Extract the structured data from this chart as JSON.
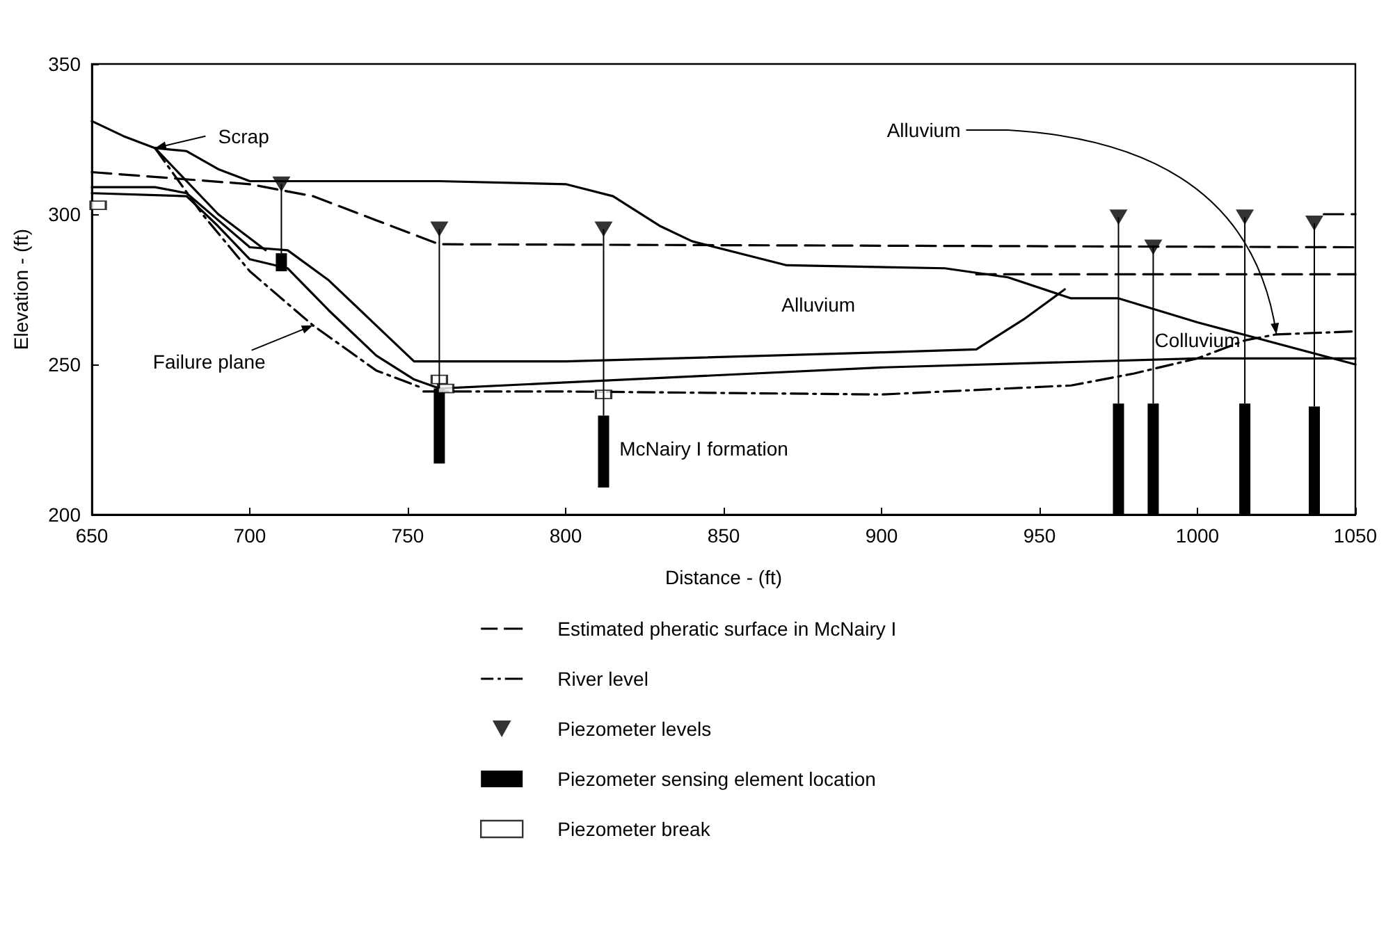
{
  "chart_data": {
    "type": "line",
    "xlabel": "Distance - (ft)",
    "ylabel": "Elevation - (ft)",
    "xlim": [
      650,
      1050
    ],
    "ylim": [
      200,
      350
    ],
    "xticks": [
      650,
      700,
      750,
      800,
      850,
      900,
      950,
      1000,
      1050
    ],
    "yticks": [
      200,
      250,
      300,
      350
    ],
    "grid": false,
    "legend": "bottom",
    "series": [
      {
        "color": "#000000",
        "line_style": "solid",
        "marker": "none",
        "x": [
          650,
          660,
          670,
          680,
          690,
          700,
          720,
          760,
          800,
          815,
          830,
          840,
          870,
          920,
          940,
          960,
          975,
          1000,
          1050
        ],
        "values": [
          331,
          326,
          322,
          321,
          315,
          311,
          311,
          311,
          310,
          306,
          296,
          291,
          283,
          282,
          279,
          272,
          272,
          264,
          250
        ]
      },
      {
        "color": "#000000",
        "line_style": "solid",
        "marker": "none",
        "x": [
          650,
          670,
          680,
          690,
          700,
          712,
          725,
          740,
          752,
          800,
          900,
          930,
          945,
          958
        ],
        "values": [
          309,
          309,
          307,
          298,
          289,
          288,
          278,
          263,
          251,
          251,
          254,
          255,
          265,
          275
        ]
      },
      {
        "color": "#000000",
        "line_style": "solid",
        "marker": "none",
        "x": [
          650,
          680,
          690,
          700,
          712,
          725,
          740,
          752,
          760,
          800,
          900,
          1000,
          1050
        ],
        "values": [
          307,
          306,
          296,
          285,
          282,
          268,
          253,
          245,
          242,
          244,
          249,
          252,
          252
        ]
      },
      {
        "color": "#000000",
        "line_style": "solid",
        "marker": "none",
        "x": [
          670,
          690,
          705
        ],
        "values": [
          322,
          300,
          288
        ]
      },
      {
        "color": "#000000",
        "line_style": "dashdot",
        "marker": "none",
        "x": [
          670,
          685,
          700,
          720,
          740,
          755
        ],
        "values": [
          322,
          300,
          281,
          263,
          248,
          242
        ]
      },
      {
        "name": "Estimated pheratic surface in McNairy I",
        "color": "#000000",
        "line_style": "dashed",
        "marker": "none",
        "x": [
          650,
          700,
          720,
          740,
          760,
          1050
        ],
        "values": [
          314,
          310,
          306,
          298,
          290,
          289
        ]
      },
      {
        "color": "#000000",
        "line_style": "dashed",
        "marker": "none",
        "x": [
          930,
          1050
        ],
        "values": [
          280,
          280
        ]
      },
      {
        "color": "#000000",
        "line_style": "dashed",
        "marker": "none",
        "x": [
          1040,
          1050
        ],
        "values": [
          300,
          300
        ]
      },
      {
        "name": "River level",
        "color": "#000000",
        "line_style": "dashdot",
        "marker": "none",
        "x": [
          755,
          800,
          900,
          960,
          980,
          1000,
          1015,
          1025,
          1050
        ],
        "values": [
          241,
          241,
          240,
          243,
          247,
          252,
          258,
          260,
          261
        ]
      },
      {
        "name": "Piezometer levels",
        "type": "scatter",
        "color": "#000000",
        "marker": "triangle",
        "x": [
          710,
          760,
          812,
          975,
          986,
          1015,
          1037
        ],
        "values": [
          310,
          295,
          295,
          299,
          289,
          299,
          297
        ]
      },
      {
        "name": "Piezometer sensing element location",
        "type": "bar",
        "color": "#000000",
        "x": [
          710,
          760,
          812,
          975,
          986,
          1015,
          1037
        ],
        "base": [
          281,
          217,
          209,
          200,
          200,
          200,
          200
        ],
        "values": [
          6,
          25,
          24,
          37,
          37,
          37,
          36
        ]
      },
      {
        "name": "Piezometer break",
        "type": "scatter",
        "color": "#000000",
        "marker": "square",
        "x": [
          652,
          760,
          762,
          812
        ],
        "values": [
          303,
          245,
          242,
          240
        ]
      }
    ],
    "annotations": [
      {
        "text": "Scrap",
        "x": 670,
        "y": 322
      },
      {
        "text": "Failure plane",
        "x": 720,
        "y": 263
      },
      "Alluvium",
      "Colluvium",
      "McNairy I formation",
      {
        "text": "Alluvium",
        "x": 1025,
        "y": 260
      }
    ]
  }
}
